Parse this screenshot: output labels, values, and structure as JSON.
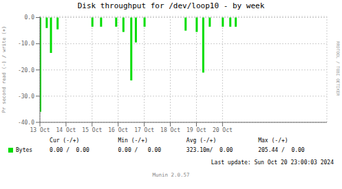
{
  "chart_data": {
    "type": "bar",
    "title": "Disk throughput for /dev/loop10  - by week",
    "y_label": "Pr second read (-) / write (+)",
    "x": [
      1728518400,
      1728540000,
      1728554000,
      1728576000,
      1728691200,
      1728720000,
      1728770000,
      1728794000,
      1728820000,
      1728835200,
      1728864000,
      1729000000,
      1729036800,
      1729058400,
      1729080000,
      1729123200,
      1729148000,
      1729166000
    ],
    "series": [
      {
        "name": "Bytes",
        "color": "#00dd00",
        "values": [
          -36.0,
          -4.0,
          -13.5,
          -4.5,
          -3.5,
          -3.5,
          -3.5,
          -5.5,
          -24.0,
          -9.5,
          -3.5,
          -5.0,
          -5.5,
          -21.0,
          -3.5,
          -3.5,
          -3.5,
          -3.5
        ]
      }
    ],
    "xlim": [
      1728518400,
      1729468800
    ],
    "xticks": [
      {
        "value": 1728518400,
        "label": "13 Oct"
      },
      {
        "value": 1728604800,
        "label": "14 Oct"
      },
      {
        "value": 1728691200,
        "label": "15 Oct"
      },
      {
        "value": 1728777600,
        "label": "16 Oct"
      },
      {
        "value": 1728864000,
        "label": "17 Oct"
      },
      {
        "value": 1728950400,
        "label": "18 Oct"
      },
      {
        "value": 1729036800,
        "label": "19 Oct"
      },
      {
        "value": 1729123200,
        "label": "20 Oct"
      }
    ],
    "ylim": [
      -40.0,
      0.4
    ],
    "yticks": [
      {
        "value": 0.0,
        "label": "0.0"
      },
      {
        "value": -10.0,
        "label": "-10.0"
      },
      {
        "value": -20.0,
        "label": "-20.0"
      },
      {
        "value": -30.0,
        "label": "-30.0"
      },
      {
        "value": -40.0,
        "label": "-40.0"
      }
    ],
    "grid": true,
    "annotations": [
      "Cur (-/+)",
      "Min (-/+)",
      "Avg (-/+)",
      "Max (-/+)",
      "0.00 /  0.00",
      "0.00 /   0.00",
      "323.10m/  0.00",
      "205.44 /  0.00",
      "Last update: Sun Oct 20 23:00:03 2024",
      "Munin 2.0.57",
      "RRDTOOL / TOBI OETIKER"
    ]
  }
}
